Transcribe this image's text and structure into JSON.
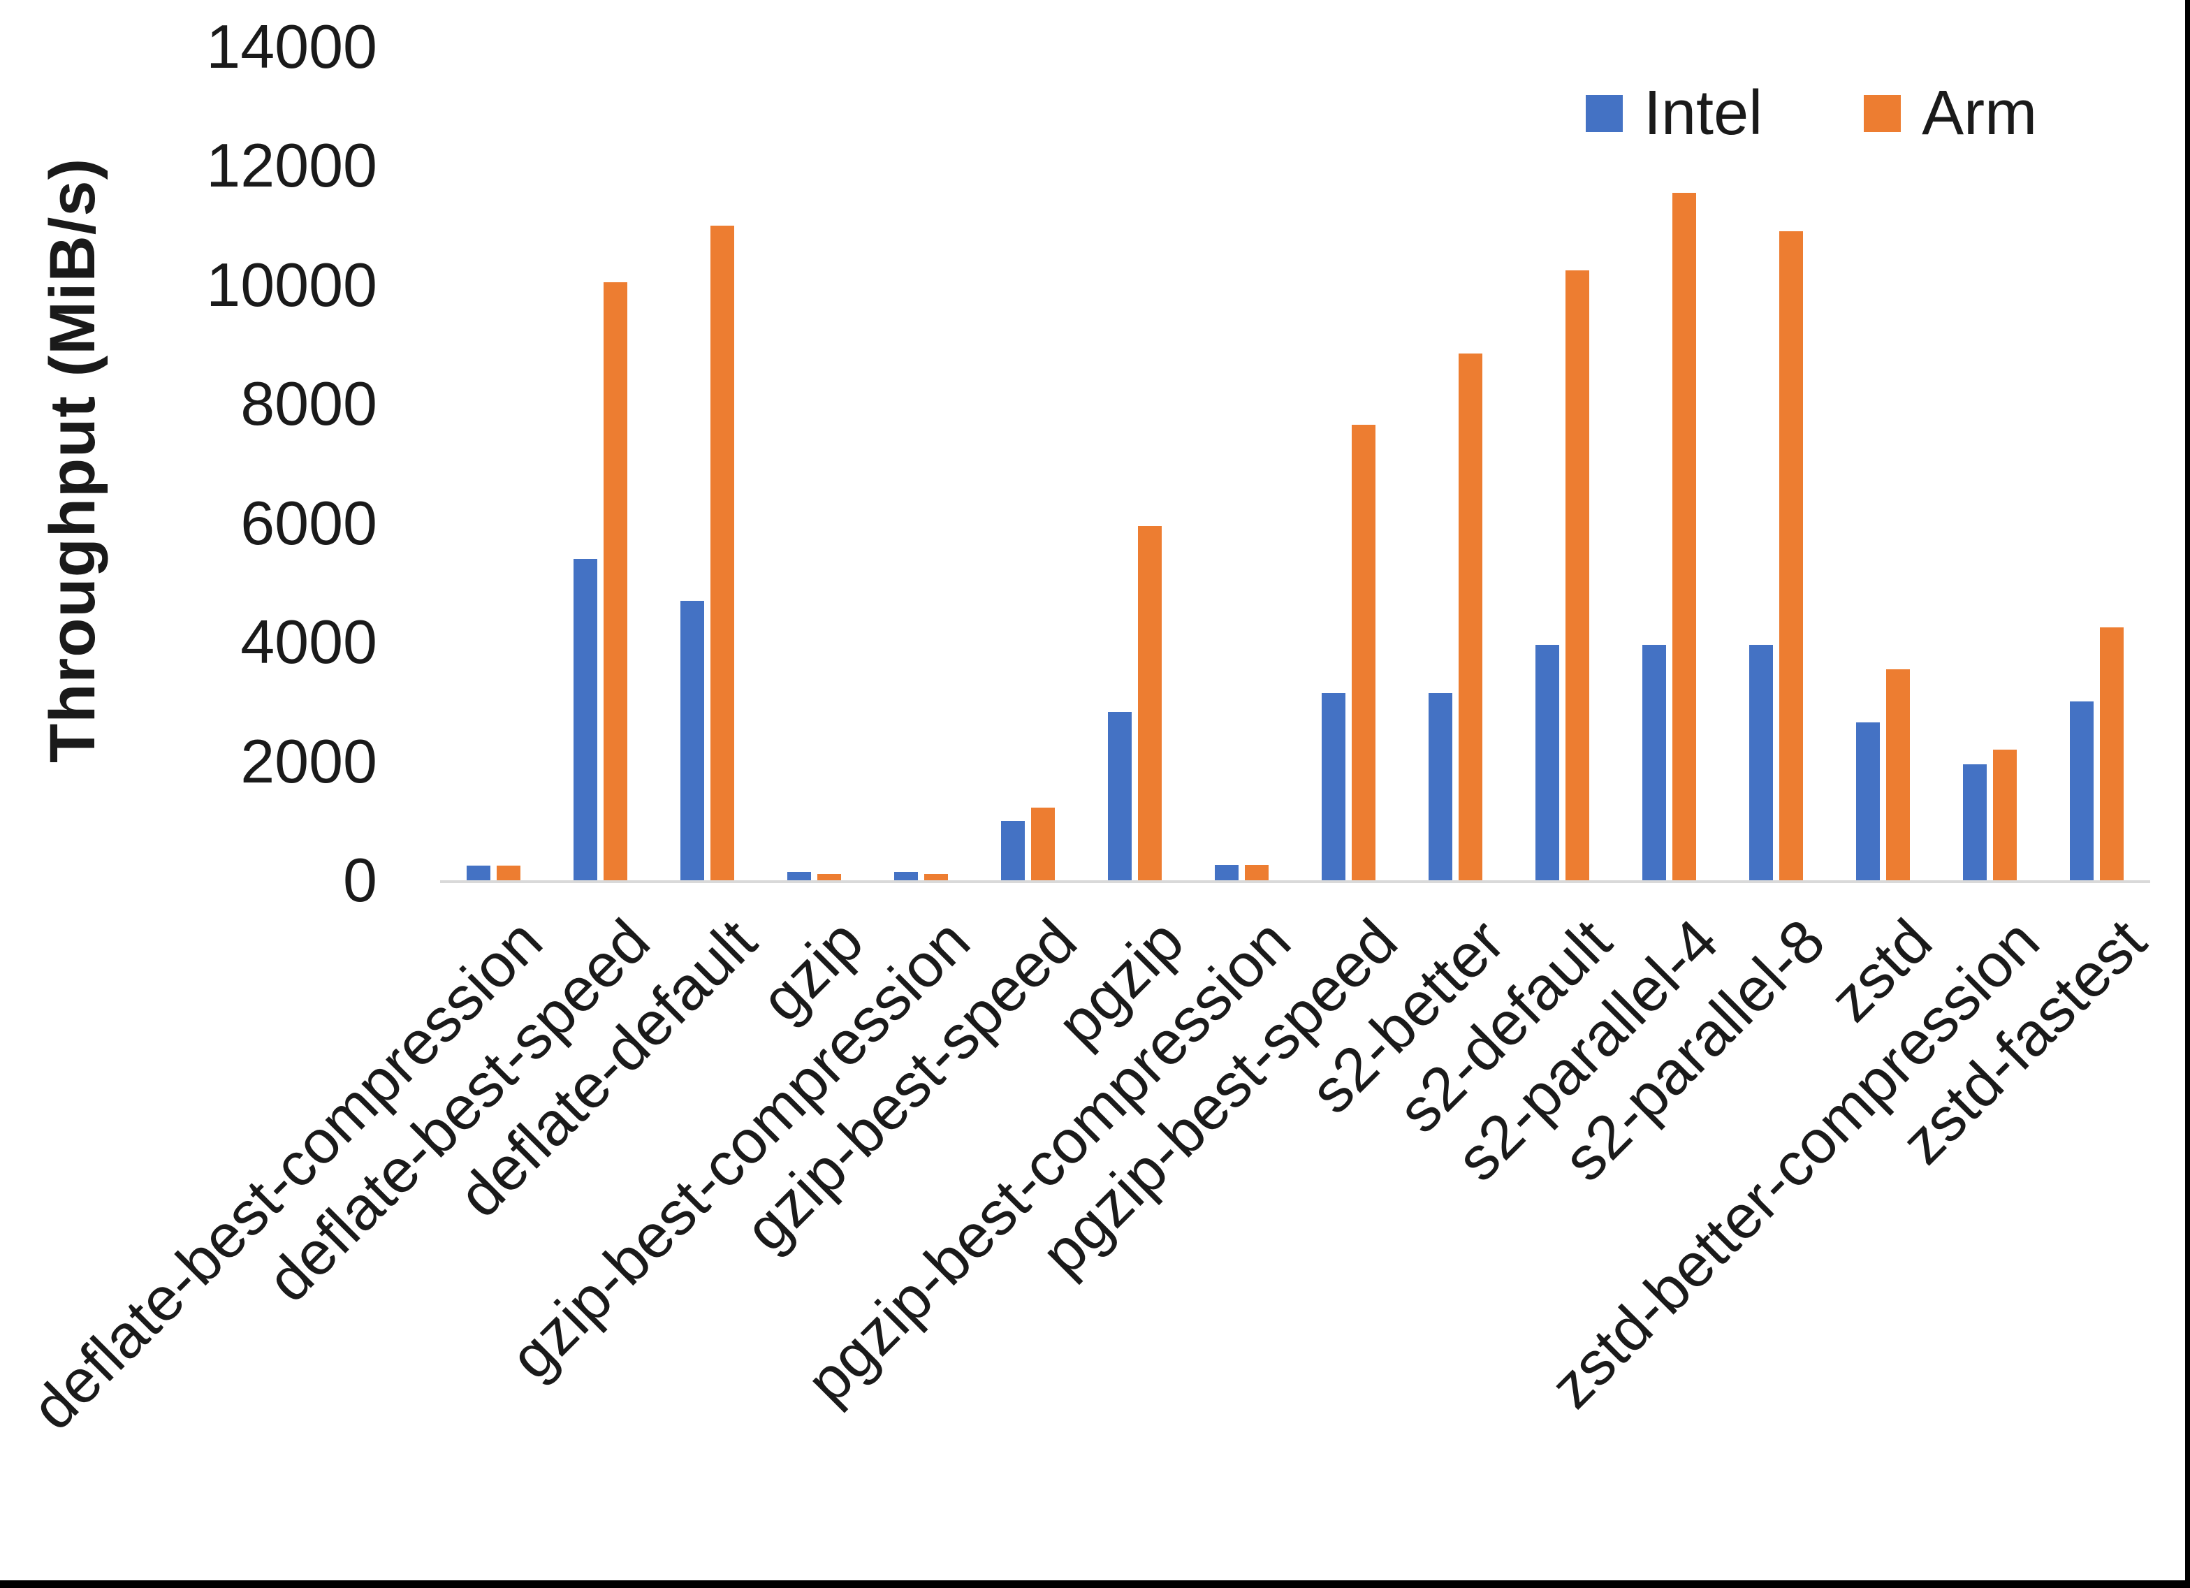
{
  "chart_data": {
    "type": "bar",
    "title": "",
    "xlabel": "",
    "ylabel": "Throughput (MiB/s)",
    "ylim": [
      0,
      14000
    ],
    "ytick_interval": 2000,
    "yticks": [
      0,
      2000,
      4000,
      6000,
      8000,
      10000,
      12000,
      14000
    ],
    "grid": false,
    "legend_position": "top-right",
    "categories": [
      "deflate-best-compression",
      "deflate-best-speed",
      "deflate-default",
      "gzip",
      "gzip-best-compression",
      "gzip-best-speed",
      "pgzip",
      "pgzip-best-compression",
      "pgzip-best-speed",
      "s2-better",
      "s2-default",
      "s2-parallel-4",
      "s2-parallel-8",
      "zstd",
      "zstd-better-compression",
      "zstd-fastest"
    ],
    "series": [
      {
        "name": "Intel",
        "color": "#4472C4",
        "values": [
          250,
          5400,
          4700,
          140,
          140,
          1000,
          2830,
          255,
          3150,
          3150,
          3950,
          3950,
          3950,
          2650,
          1950,
          3000
        ]
      },
      {
        "name": "Arm",
        "color": "#ED7D31",
        "values": [
          245,
          10050,
          11000,
          110,
          110,
          1220,
          5950,
          260,
          7650,
          8850,
          10250,
          11550,
          10900,
          3550,
          2200,
          4250
        ]
      }
    ]
  },
  "colors": {
    "axis_line": "#d9d9d9",
    "text": "#1a1a1a",
    "background": "#ffffff",
    "edge_border": "#000000"
  }
}
